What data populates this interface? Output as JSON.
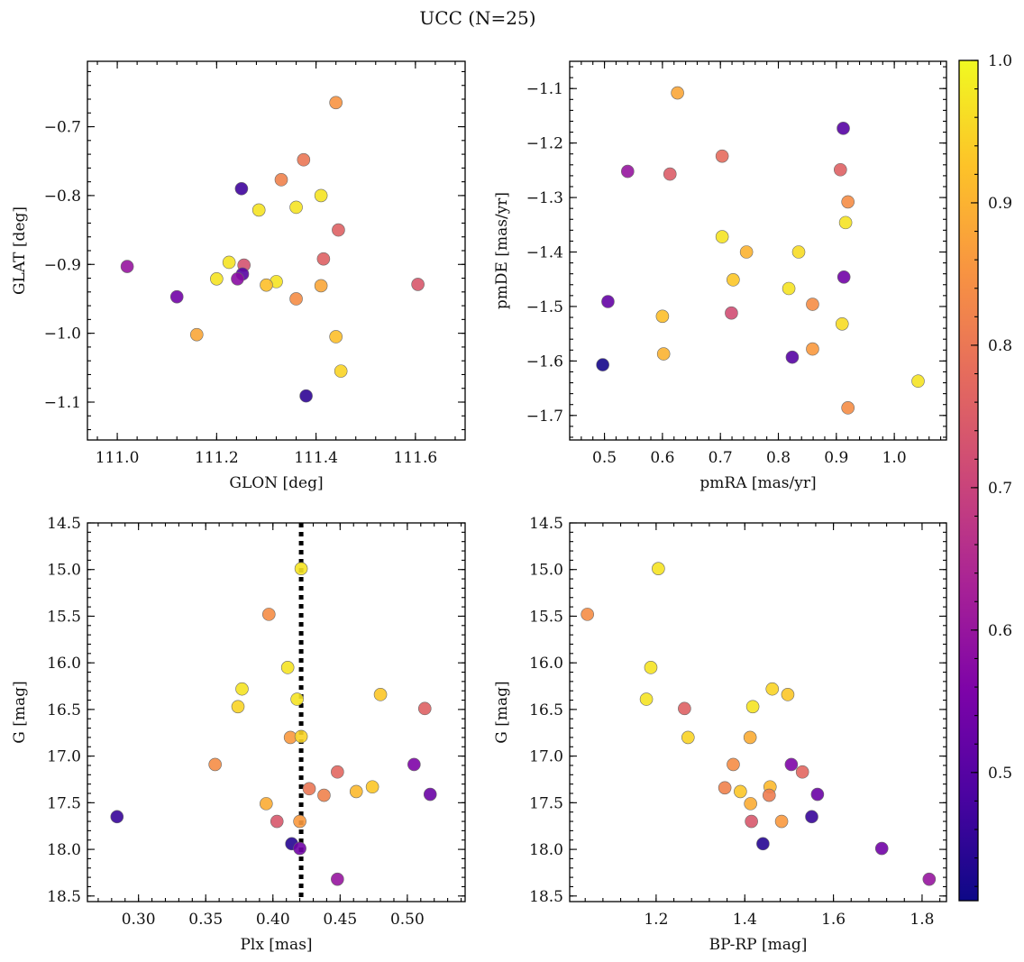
{
  "figure": {
    "title": "UCC (N=25)"
  },
  "colorbar": {
    "ticks": [
      "0.5",
      "0.6",
      "0.7",
      "0.8",
      "0.9",
      "1.0"
    ],
    "range": [
      0.41,
      1.0
    ],
    "colormap": "plasma"
  },
  "chart_data": [
    {
      "type": "scatter",
      "xlabel": "GLON [deg]",
      "ylabel": "GLAT [deg]",
      "xlim": [
        110.94,
        111.7
      ],
      "ylim": [
        -1.155,
        -0.605
      ],
      "xticks": [
        "111.0",
        "111.2",
        "111.4",
        "111.6"
      ],
      "yticks": [
        "−0.7",
        "−0.8",
        "−0.9",
        "−1.0",
        "−1.1"
      ],
      "x": [
        111.44,
        111.375,
        111.33,
        111.25,
        111.41,
        111.285,
        111.36,
        111.445,
        111.02,
        111.225,
        111.255,
        111.415,
        111.2,
        111.252,
        111.242,
        111.32,
        111.3,
        111.41,
        111.12,
        111.36,
        111.605,
        111.16,
        111.44,
        111.45,
        111.38
      ],
      "y": [
        -0.665,
        -0.748,
        -0.777,
        -0.79,
        -0.8,
        -0.821,
        -0.817,
        -0.85,
        -0.903,
        -0.897,
        -0.901,
        -0.892,
        -0.921,
        -0.914,
        -0.921,
        -0.925,
        -0.93,
        -0.931,
        -0.947,
        -0.95,
        -0.929,
        -1.002,
        -1.005,
        -1.055,
        -1.091
      ],
      "c": [
        0.85,
        0.8,
        0.82,
        0.47,
        0.97,
        0.97,
        0.97,
        0.76,
        0.6,
        0.97,
        0.73,
        0.76,
        0.97,
        0.5,
        0.58,
        0.97,
        0.92,
        0.88,
        0.54,
        0.84,
        0.74,
        0.88,
        0.92,
        0.95,
        0.45
      ]
    },
    {
      "type": "scatter",
      "xlabel": "pmRA [mas/yr]",
      "ylabel": "pmDE [mas/yr]",
      "xlim": [
        0.44,
        1.09
      ],
      "ylim": [
        -1.745,
        -1.05
      ],
      "xticks": [
        "0.5",
        "0.6",
        "0.7",
        "0.8",
        "0.9",
        "1.0"
      ],
      "yticks": [
        "−1.1",
        "−1.2",
        "−1.3",
        "−1.4",
        "−1.5",
        "−1.6",
        "−1.7"
      ],
      "x": [
        0.626,
        0.912,
        0.703,
        0.54,
        0.613,
        0.907,
        0.92,
        0.916,
        0.703,
        0.745,
        0.835,
        0.722,
        0.913,
        0.818,
        0.506,
        0.859,
        0.719,
        0.6,
        0.91,
        0.859,
        0.602,
        0.497,
        0.824,
        1.041,
        0.92
      ],
      "y": [
        -1.108,
        -1.173,
        -1.224,
        -1.252,
        -1.257,
        -1.249,
        -1.308,
        -1.346,
        -1.372,
        -1.4,
        -1.4,
        -1.451,
        -1.446,
        -1.467,
        -1.491,
        -1.496,
        -1.512,
        -1.518,
        -1.532,
        -1.578,
        -1.587,
        -1.607,
        -1.593,
        -1.637,
        -1.686
      ],
      "c": [
        0.88,
        0.5,
        0.78,
        0.6,
        0.75,
        0.76,
        0.84,
        0.97,
        0.97,
        0.9,
        0.96,
        0.93,
        0.54,
        0.97,
        0.52,
        0.84,
        0.72,
        0.92,
        0.96,
        0.86,
        0.9,
        0.42,
        0.5,
        0.97,
        0.84
      ]
    },
    {
      "type": "scatter",
      "xlabel": "Plx [mas]",
      "ylabel": "G [mag]",
      "xlim": [
        0.262,
        0.543
      ],
      "ylim": [
        18.56,
        14.5
      ],
      "xticks": [
        "0.30",
        "0.35",
        "0.40",
        "0.45",
        "0.50"
      ],
      "yticks": [
        "14.5",
        "15.0",
        "15.5",
        "16.0",
        "16.5",
        "17.0",
        "17.5",
        "18.0",
        "18.5"
      ],
      "vline": 0.421,
      "x": [
        0.421,
        0.397,
        0.411,
        0.377,
        0.374,
        0.418,
        0.48,
        0.513,
        0.413,
        0.421,
        0.357,
        0.448,
        0.505,
        0.427,
        0.474,
        0.462,
        0.438,
        0.517,
        0.395,
        0.284,
        0.403,
        0.42,
        0.414,
        0.42,
        0.448
      ],
      "y": [
        14.99,
        15.48,
        16.05,
        16.28,
        16.47,
        16.39,
        16.34,
        16.49,
        16.8,
        16.79,
        17.09,
        17.17,
        17.09,
        17.35,
        17.33,
        17.38,
        17.42,
        17.41,
        17.51,
        17.65,
        17.7,
        17.7,
        17.94,
        17.99,
        18.32
      ],
      "c": [
        0.97,
        0.84,
        0.97,
        0.97,
        0.95,
        0.97,
        0.93,
        0.76,
        0.86,
        0.95,
        0.84,
        0.77,
        0.56,
        0.8,
        0.93,
        0.91,
        0.82,
        0.53,
        0.89,
        0.46,
        0.74,
        0.86,
        0.44,
        0.54,
        0.6
      ]
    },
    {
      "type": "scatter",
      "xlabel": "BP-RP [mag]",
      "ylabel": "G [mag]",
      "xlim": [
        1.005,
        1.855
      ],
      "ylim": [
        18.56,
        14.5
      ],
      "xticks": [
        "1.2",
        "1.4",
        "1.6",
        "1.8"
      ],
      "yticks": [
        "14.5",
        "15.0",
        "15.5",
        "16.0",
        "16.5",
        "17.0",
        "17.5",
        "18.0",
        "18.5"
      ],
      "x": [
        1.205,
        1.045,
        1.188,
        1.462,
        1.178,
        1.497,
        1.264,
        1.418,
        1.272,
        1.412,
        1.374,
        1.505,
        1.53,
        1.355,
        1.457,
        1.39,
        1.564,
        1.455,
        1.413,
        1.551,
        1.415,
        1.483,
        1.441,
        1.709,
        1.816
      ],
      "y": [
        14.99,
        15.48,
        16.05,
        16.28,
        16.39,
        16.34,
        16.49,
        16.47,
        16.8,
        16.8,
        17.09,
        17.09,
        17.17,
        17.34,
        17.33,
        17.38,
        17.41,
        17.42,
        17.51,
        17.65,
        17.7,
        17.7,
        17.94,
        17.99,
        18.32
      ],
      "c": [
        0.97,
        0.84,
        0.97,
        0.95,
        0.97,
        0.93,
        0.76,
        0.97,
        0.95,
        0.89,
        0.84,
        0.56,
        0.77,
        0.82,
        0.91,
        0.93,
        0.53,
        0.81,
        0.89,
        0.46,
        0.74,
        0.86,
        0.44,
        0.54,
        0.6
      ]
    }
  ]
}
